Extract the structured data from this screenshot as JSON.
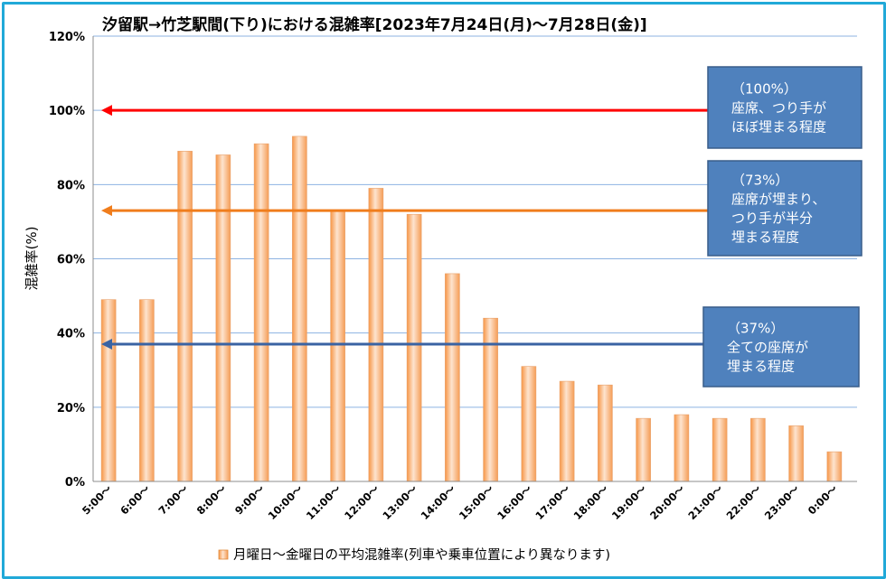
{
  "chart_data": {
    "type": "bar",
    "title": "汐留駅→竹芝駅間(下り)における混雑率[2023年7月24日(月)～7月28日(金)]",
    "ylabel": "混雑率(%)",
    "xlabel": "",
    "ylim": [
      0,
      120
    ],
    "yticks": [
      "0%",
      "20%",
      "40%",
      "60%",
      "80%",
      "100%",
      "120%"
    ],
    "grid": true,
    "legend_position": "bottom",
    "categories": [
      "5:00～",
      "6:00～",
      "7:00～",
      "8:00～",
      "9:00～",
      "10:00～",
      "11:00～",
      "12:00～",
      "13:00～",
      "14:00～",
      "15:00～",
      "16:00～",
      "17:00～",
      "18:00～",
      "19:00～",
      "20:00～",
      "21:00～",
      "22:00～",
      "23:00～",
      "0:00～"
    ],
    "series": [
      {
        "name": "月曜日～金曜日の平均混雑率(列車や乗車位置により異なります)",
        "color": "#fac090",
        "values": [
          49,
          49,
          89,
          88,
          91,
          93,
          73,
          79,
          72,
          56,
          44,
          31,
          27,
          26,
          17,
          18,
          17,
          17,
          15,
          8
        ]
      }
    ],
    "reference_lines": [
      {
        "value": 100,
        "color": "#ff0000",
        "label_lines": [
          "（100%）",
          "座席、つり手が",
          "ほぼ埋まる程度"
        ]
      },
      {
        "value": 73,
        "color": "#f07d1c",
        "label_lines": [
          "（73%）",
          "座席が埋まり、",
          "つり手が半分",
          "埋まる程度"
        ]
      },
      {
        "value": 37,
        "color": "#3a63a3",
        "label_lines": [
          "（37%）",
          "全ての座席が",
          "埋まる程度"
        ]
      }
    ],
    "colors": {
      "annotation_box": "#4f81bd",
      "grid": "#8db3e2",
      "frame": "#21a9d8"
    }
  }
}
